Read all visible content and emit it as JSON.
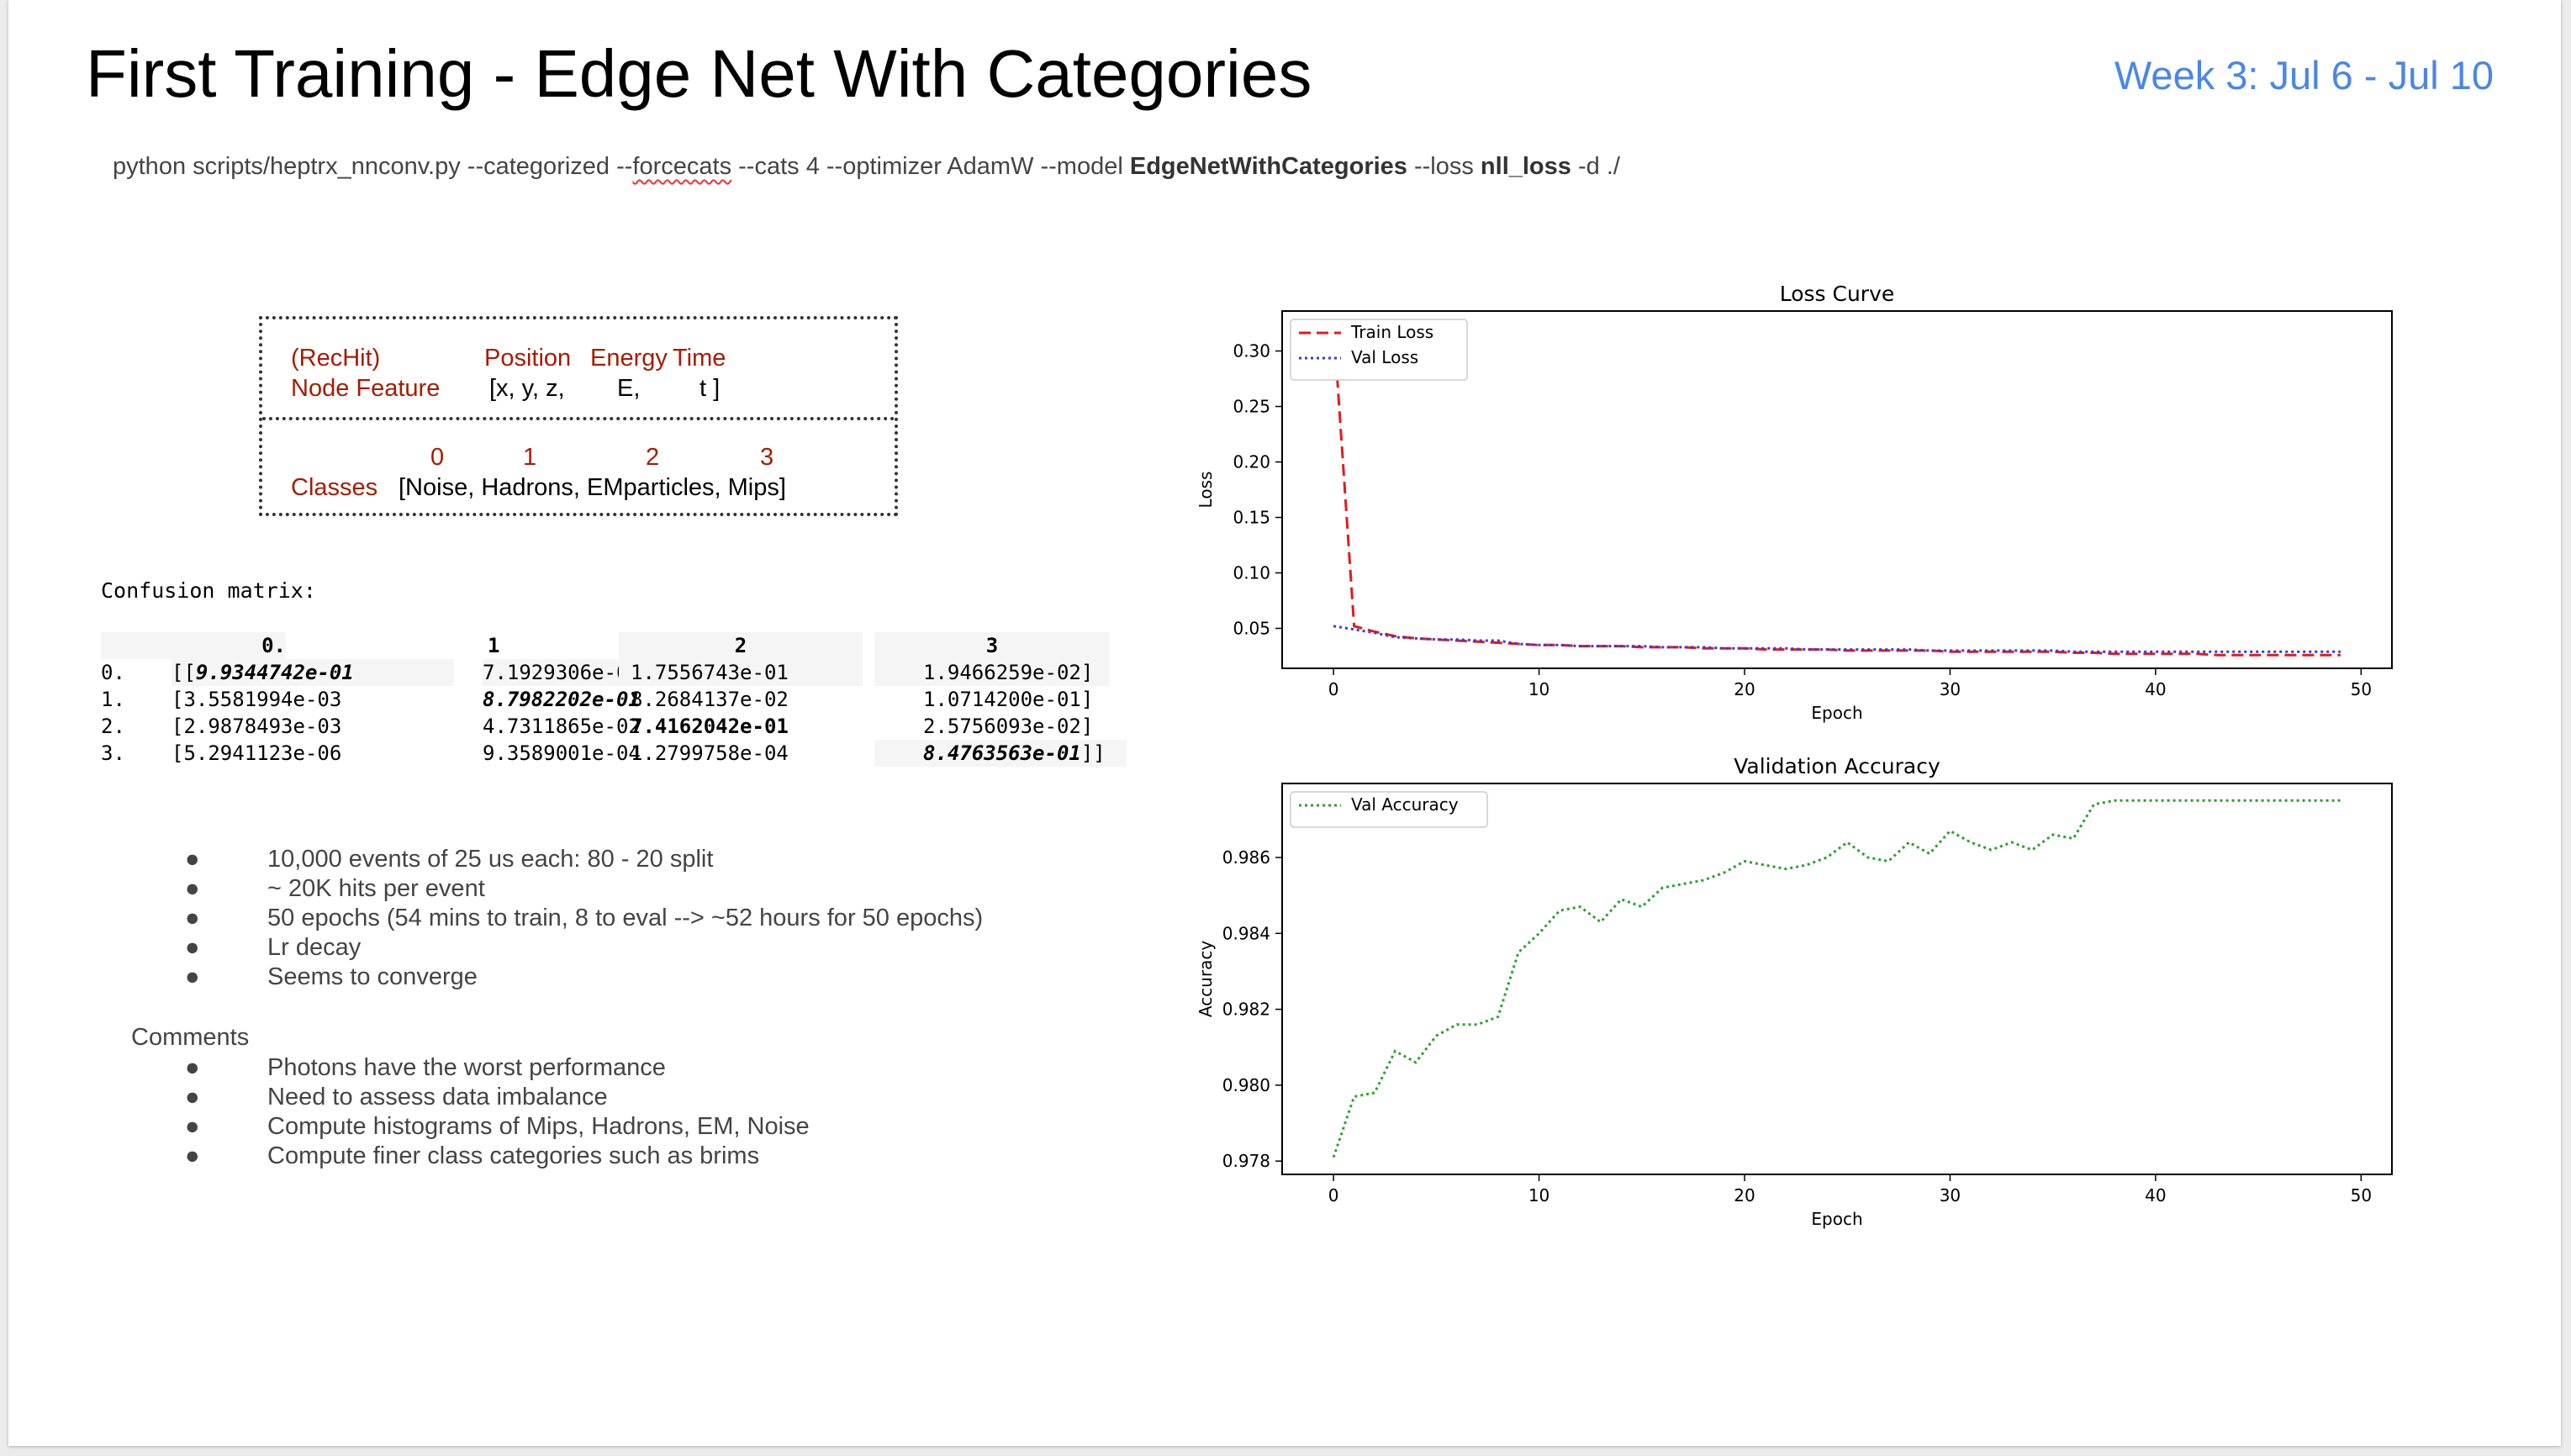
{
  "slide": {
    "title": "First Training - Edge Net With Categories",
    "week": "Week 3: Jul 6 - Jul 10",
    "command": {
      "pre": "python scripts/heptrx_nnconv.py --categorized --",
      "squiggle": "forcecats",
      "mid1": " --cats 4 --optimizer AdamW --model ",
      "model": "EdgeNetWithCategories",
      "mid2": " --loss ",
      "loss": "nll_loss",
      "post": " -d ./"
    }
  },
  "feature_box": {
    "rechit": "(RecHit)",
    "node_feature": "Node Feature",
    "position": "Position",
    "energy": "Energy",
    "time": "Time",
    "xyz": "[x, y, z,",
    "e": "E,",
    "t": "t ]",
    "idx0": "0",
    "idx1": "1",
    "idx2": "2",
    "idx3": "3",
    "classes_label": "Classes",
    "classes_list": "[Noise, Hadrons, EMparticles, Mips]"
  },
  "confusion": {
    "title": "Confusion matrix:",
    "headers": [
      "0.",
      "1",
      "2",
      "3"
    ],
    "rows": [
      {
        "idx": "0.",
        "open": "[[",
        "v": [
          "9.9344742e-01",
          "7.1929306e-02",
          "1.7556743e-01",
          "1.9466259e-02"
        ],
        "close": "]"
      },
      {
        "idx": "1.",
        "open": "[",
        "v": [
          "3.5581994e-03",
          "8.7982202e-01",
          "8.2684137e-02",
          "1.0714200e-01"
        ],
        "close": "]"
      },
      {
        "idx": "2.",
        "open": "[",
        "v": [
          "2.9878493e-03",
          "4.7311865e-02",
          "7.4162042e-01",
          "2.5756093e-02"
        ],
        "close": "]"
      },
      {
        "idx": "3.",
        "open": "[",
        "v": [
          "5.2941123e-06",
          "9.3589001e-04",
          "1.2799758e-04",
          "8.4763563e-01"
        ],
        "close": "]]"
      }
    ]
  },
  "bullets": [
    "10,000 events of 25 us each: 80 - 20 split",
    "~ 20K hits per event",
    "50 epochs (54 mins to train, 8 to eval  --> ~52 hours for 50 epochs)",
    "Lr decay",
    "Seems to converge"
  ],
  "bullet_glyph": "●",
  "comments_label": "Comments",
  "comments": [
    "Photons have the worst performance",
    "Need to assess data imbalance",
    "Compute histograms of Mips, Hadrons, EM, Noise",
    "Compute finer class categories such as brims"
  ],
  "chart_data": [
    {
      "type": "line",
      "title": "Loss Curve",
      "xlabel": "Epoch",
      "ylabel": "Loss",
      "xlim": [
        -2.5,
        51.5
      ],
      "ylim": [
        0.014,
        0.336
      ],
      "xticks": [
        0,
        10,
        20,
        30,
        40,
        50
      ],
      "yticks": [
        0.05,
        0.1,
        0.15,
        0.2,
        0.25,
        0.3
      ],
      "legend": "top-left",
      "grid": false,
      "series": [
        {
          "name": "Train Loss",
          "color": "#e41a1c",
          "style": "dashed",
          "values": [
            0.325,
            0.052,
            0.047,
            0.043,
            0.041,
            0.04,
            0.039,
            0.038,
            0.037,
            0.036,
            0.035,
            0.035,
            0.034,
            0.034,
            0.034,
            0.033,
            0.033,
            0.033,
            0.032,
            0.032,
            0.032,
            0.031,
            0.031,
            0.031,
            0.031,
            0.03,
            0.03,
            0.03,
            0.03,
            0.03,
            0.029,
            0.029,
            0.029,
            0.029,
            0.029,
            0.029,
            0.028,
            0.028,
            0.027,
            0.027,
            0.027,
            0.027,
            0.027,
            0.026,
            0.026,
            0.026,
            0.026,
            0.026,
            0.026,
            0.026
          ]
        },
        {
          "name": "Val Loss",
          "color": "#3a3ad6",
          "style": "dotted",
          "values": [
            0.052,
            0.049,
            0.046,
            0.042,
            0.041,
            0.04,
            0.04,
            0.039,
            0.039,
            0.036,
            0.035,
            0.035,
            0.034,
            0.034,
            0.034,
            0.034,
            0.033,
            0.033,
            0.033,
            0.032,
            0.032,
            0.032,
            0.032,
            0.031,
            0.031,
            0.031,
            0.031,
            0.031,
            0.031,
            0.03,
            0.03,
            0.03,
            0.03,
            0.03,
            0.03,
            0.03,
            0.029,
            0.029,
            0.029,
            0.029,
            0.029,
            0.029,
            0.029,
            0.029,
            0.029,
            0.029,
            0.029,
            0.029,
            0.029,
            0.029
          ]
        }
      ]
    },
    {
      "type": "line",
      "title": "Validation Accuracy",
      "xlabel": "Epoch",
      "ylabel": "Accuracy",
      "xlim": [
        -2.5,
        51.5
      ],
      "ylim": [
        0.97765,
        0.98795
      ],
      "xticks": [
        0,
        10,
        20,
        30,
        40,
        50
      ],
      "yticks": [
        0.978,
        0.98,
        0.982,
        0.984,
        0.986
      ],
      "legend": "top-left",
      "grid": false,
      "series": [
        {
          "name": "Val Accuracy",
          "color": "#2ca02c",
          "style": "dotted",
          "values": [
            0.9781,
            0.9797,
            0.9798,
            0.9809,
            0.9806,
            0.9813,
            0.9816,
            0.9816,
            0.9818,
            0.9835,
            0.984,
            0.9846,
            0.9847,
            0.9843,
            0.9849,
            0.9847,
            0.9852,
            0.9853,
            0.9854,
            0.9856,
            0.9859,
            0.9858,
            0.9857,
            0.9858,
            0.986,
            0.9864,
            0.986,
            0.9859,
            0.9864,
            0.9861,
            0.9867,
            0.9864,
            0.9862,
            0.9864,
            0.9862,
            0.9866,
            0.9865,
            0.9874,
            0.9875,
            0.9875,
            0.9875,
            0.9875,
            0.9875,
            0.9875,
            0.9875,
            0.9875,
            0.9875,
            0.9875,
            0.9875,
            0.9875
          ]
        }
      ]
    }
  ]
}
